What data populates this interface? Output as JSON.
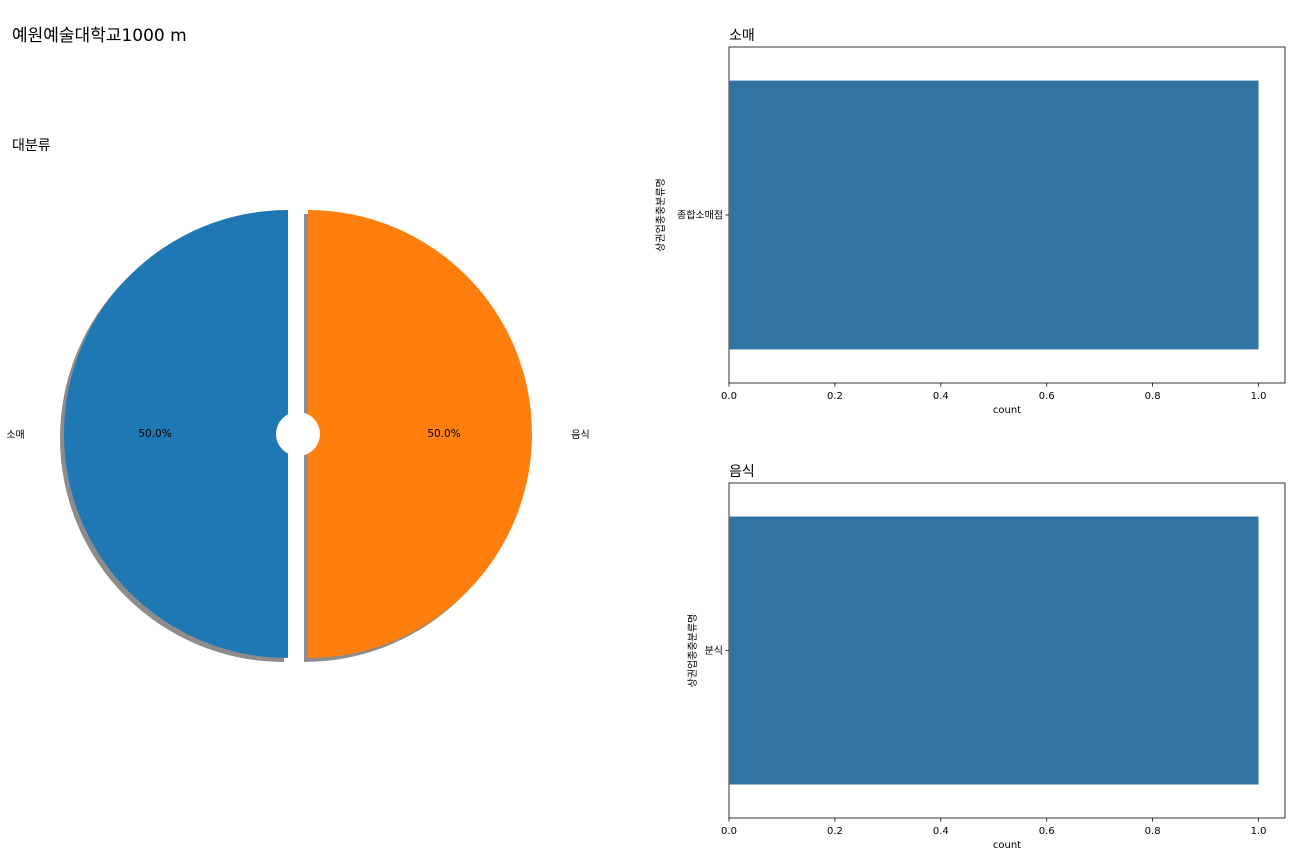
{
  "figure": {
    "suptitle": "예원예술대학교1000 m"
  },
  "chart_data": [
    {
      "type": "pie",
      "title": "대분류",
      "labels": [
        "소매",
        "음식"
      ],
      "values": [
        50.0,
        50.0
      ],
      "autopct": [
        "50.0%",
        "50.0%"
      ],
      "colors": [
        "#1f77b4",
        "#ff7f0e"
      ],
      "shadow": true,
      "exploded": true,
      "donut_hole": true
    },
    {
      "type": "bar",
      "orientation": "horizontal",
      "title": "소매",
      "categories": [
        "종합소매점"
      ],
      "values": [
        1
      ],
      "xlabel": "count",
      "ylabel": "상권업종중분류명",
      "xlim": [
        0,
        1.05
      ],
      "xticks": [
        "0.0",
        "0.2",
        "0.4",
        "0.6",
        "0.8",
        "1.0"
      ],
      "color": "#3274a1"
    },
    {
      "type": "bar",
      "orientation": "horizontal",
      "title": "음식",
      "categories": [
        "분식"
      ],
      "values": [
        1
      ],
      "xlabel": "count",
      "ylabel": "상권업종중분류명",
      "xlim": [
        0,
        1.05
      ],
      "xticks": [
        "0.0",
        "0.2",
        "0.4",
        "0.6",
        "0.8",
        "1.0"
      ],
      "color": "#3274a1"
    }
  ]
}
